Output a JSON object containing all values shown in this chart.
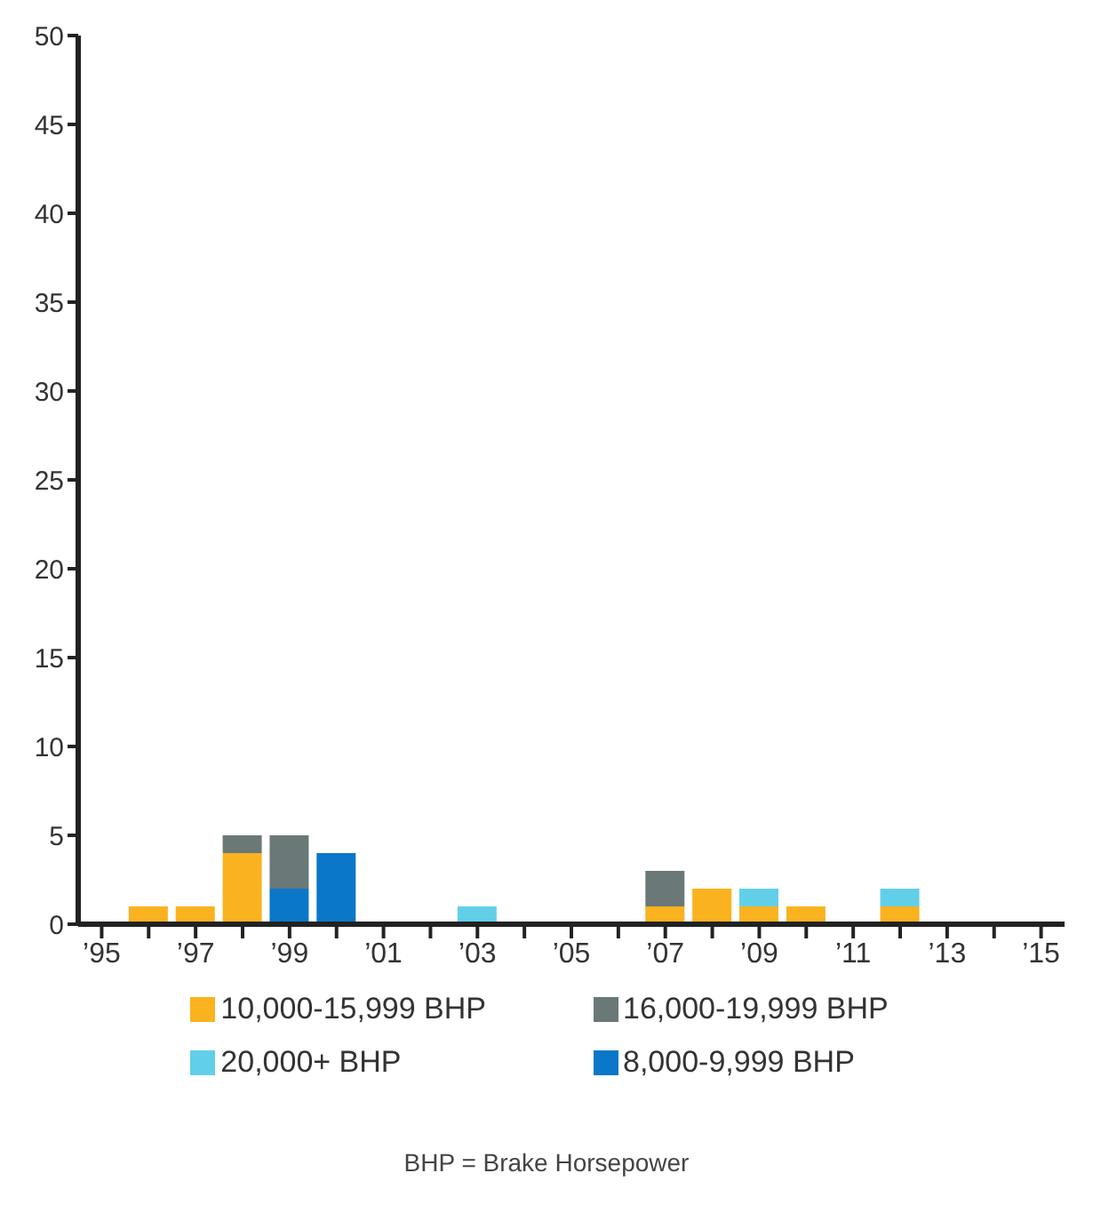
{
  "chart_data": {
    "type": "bar",
    "stacked": true,
    "categories": [
      "’95",
      null,
      "’97",
      null,
      "’99",
      null,
      "’01",
      null,
      "’03",
      null,
      "’05",
      null,
      "’07",
      null,
      "’09",
      null,
      "’11",
      null,
      "’13",
      null,
      "’15"
    ],
    "series": [
      {
        "name": "8,000-9,999 BHP",
        "color": "#0a77c9",
        "values": [
          0,
          0,
          0,
          0,
          2,
          4,
          0,
          0,
          0,
          0,
          0,
          0,
          0,
          0,
          0,
          0,
          0,
          0,
          0,
          0,
          0
        ]
      },
      {
        "name": "10,000-15,999 BHP",
        "color": "#fbb21f",
        "values": [
          0,
          1,
          1,
          4,
          0,
          0,
          0,
          0,
          0,
          0,
          0,
          0,
          1,
          2,
          1,
          1,
          0,
          1,
          0,
          0,
          0
        ]
      },
      {
        "name": "16,000-19,999 BHP",
        "color": "#6b7878",
        "values": [
          0,
          0,
          0,
          1,
          3,
          0,
          0,
          0,
          0,
          0,
          0,
          0,
          2,
          0,
          0,
          0,
          0,
          0,
          0,
          0,
          0
        ]
      },
      {
        "name": "20,000+ BHP",
        "color": "#62cfe9",
        "values": [
          0,
          0,
          0,
          0,
          0,
          0,
          0,
          0,
          1,
          0,
          0,
          0,
          0,
          0,
          1,
          0,
          0,
          1,
          0,
          0,
          0
        ]
      }
    ],
    "ylim": [
      0,
      50
    ],
    "yticks": [
      0,
      5,
      10,
      15,
      20,
      25,
      30,
      35,
      40,
      45,
      50
    ],
    "grid": false,
    "legend": "bottom",
    "annotations": [
      "BHP = Brake Horsepower"
    ]
  }
}
